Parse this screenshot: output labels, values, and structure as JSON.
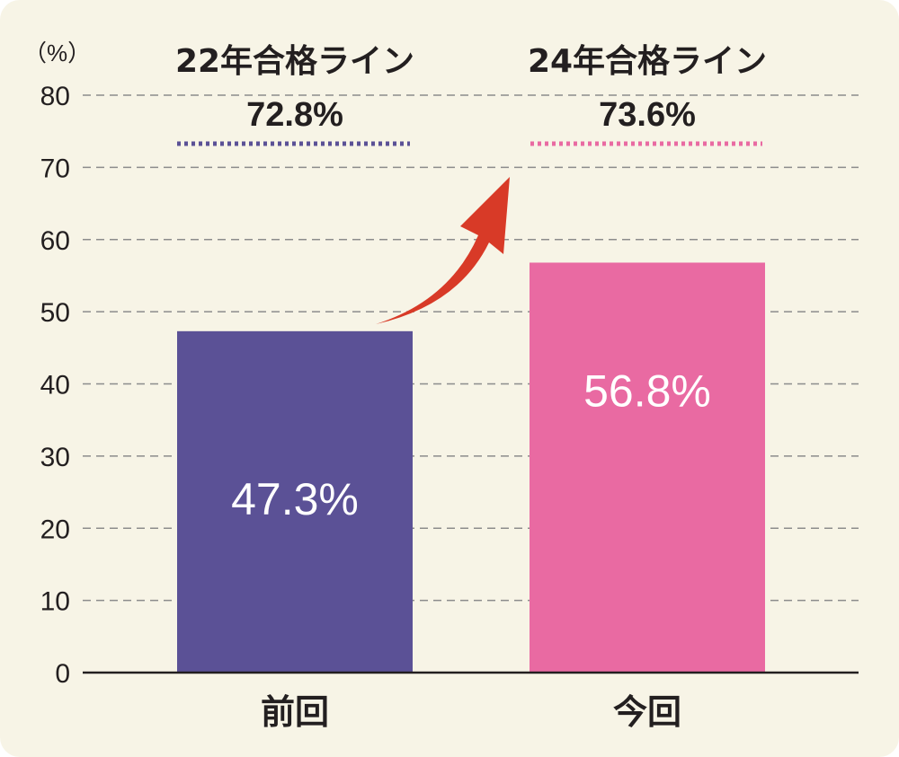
{
  "chart_data": {
    "type": "bar",
    "unit_label": "（%）",
    "ylim": [
      0,
      80
    ],
    "yticks": [
      0,
      10,
      20,
      30,
      40,
      50,
      60,
      70,
      80
    ],
    "grid": true,
    "categories": [
      "前回",
      "今回"
    ],
    "values": [
      47.3,
      56.8
    ],
    "data_labels": [
      "47.3%",
      "56.8%"
    ],
    "bar_colors": [
      "#5b5196",
      "#e96aa2"
    ],
    "pass_lines": [
      {
        "label": "22年合格ライン",
        "value_text": "72.8%",
        "value": 72.8,
        "color": "#5b5196"
      },
      {
        "label": "24年合格ライン",
        "value_text": "73.6%",
        "value": 73.6,
        "color": "#e96aa2"
      }
    ],
    "annotation": {
      "type": "arrow-up-right",
      "color": "#d83a27"
    }
  }
}
